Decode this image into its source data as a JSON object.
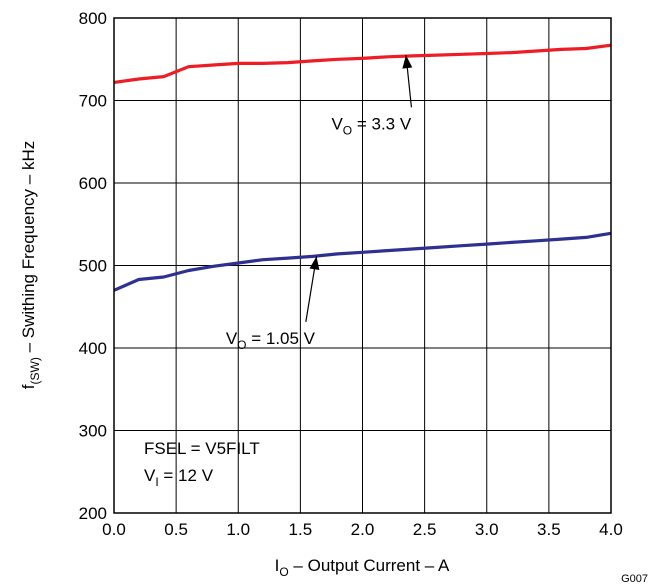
{
  "chart_data": {
    "type": "line",
    "xlabel": {
      "main": "I",
      "sub": "O",
      "rest": " – Output Current – A"
    },
    "ylabel": {
      "main": "f",
      "sub": "(SW)",
      "rest": " – Swithing Frequency – kHz"
    },
    "xlim": [
      0,
      4
    ],
    "ylim": [
      200,
      800
    ],
    "xticks": [
      "0.0",
      "0.5",
      "1.0",
      "1.5",
      "2.0",
      "2.5",
      "3.0",
      "3.5",
      "4.0"
    ],
    "yticks": [
      "200",
      "300",
      "400",
      "500",
      "600",
      "700",
      "800"
    ],
    "grid": true,
    "series": [
      {
        "name": "VO = 3.3 V",
        "color": "#ee1c25",
        "x": [
          0.0,
          0.2,
          0.4,
          0.6,
          0.8,
          1.0,
          1.2,
          1.4,
          1.6,
          1.8,
          2.0,
          2.2,
          2.4,
          2.6,
          2.8,
          3.0,
          3.2,
          3.4,
          3.6,
          3.8,
          4.0
        ],
        "y": [
          722,
          726,
          729,
          741,
          743,
          745,
          745,
          746,
          748,
          750,
          751,
          753,
          754,
          755,
          756,
          757,
          758,
          760,
          762,
          763,
          767
        ]
      },
      {
        "name": "VO = 1.05 V",
        "color": "#2e3192",
        "x": [
          0.0,
          0.2,
          0.4,
          0.6,
          0.8,
          1.0,
          1.2,
          1.4,
          1.6,
          1.8,
          2.0,
          2.2,
          2.4,
          2.6,
          2.8,
          3.0,
          3.2,
          3.4,
          3.6,
          3.8,
          4.0
        ],
        "y": [
          470,
          483,
          486,
          494,
          499,
          503,
          507,
          509,
          511,
          514,
          516,
          518,
          520,
          522,
          524,
          526,
          528,
          530,
          532,
          534,
          539
        ]
      }
    ],
    "annotations": [
      {
        "main": "V",
        "sub": "O",
        "rest": " = 3.3 V",
        "arrow_to": [
          2.35,
          755
        ],
        "label_at": [
          1.75,
          665
        ]
      },
      {
        "main": "V",
        "sub": "O",
        "rest": " = 1.05 V",
        "arrow_to": [
          1.63,
          511
        ],
        "label_at": [
          0.9,
          405
        ]
      }
    ],
    "note": [
      {
        "main": "FSEL = V5FILT",
        "sub": "",
        "rest": ""
      },
      {
        "main": "V",
        "sub": "I",
        "rest": " = 12 V"
      }
    ],
    "figure_code": "G007"
  }
}
